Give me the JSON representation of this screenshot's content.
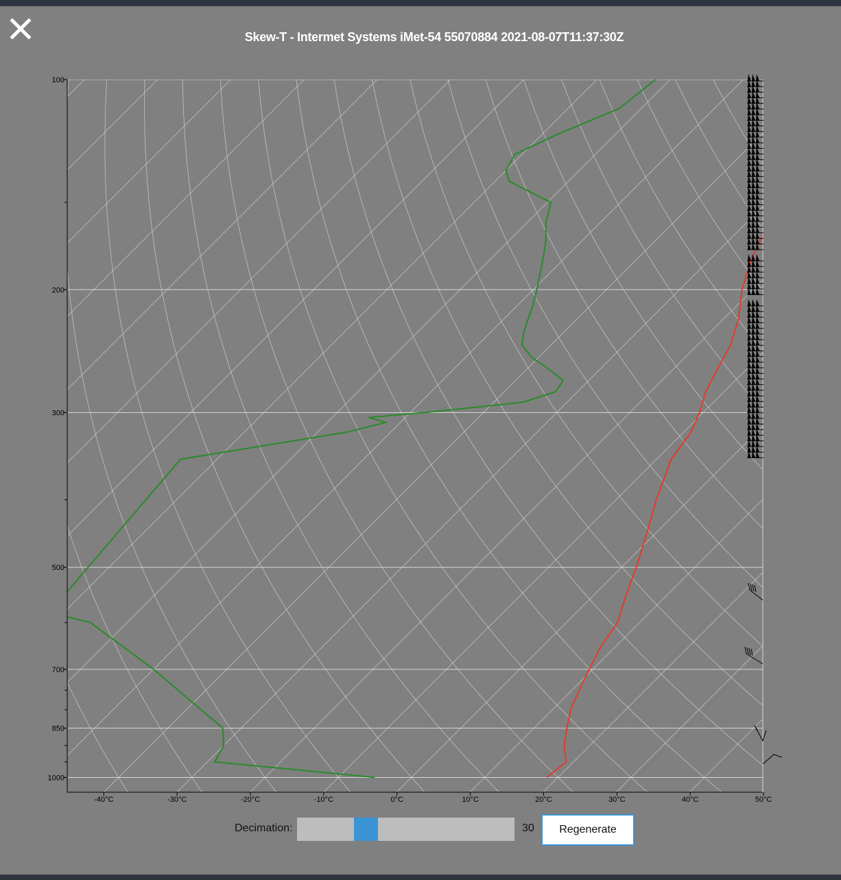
{
  "title": "Skew-T - Intermet Systems iMet-54 55070884 2021-08-07T11:37:30Z",
  "close_icon": "close-icon",
  "controls": {
    "decimation_label": "Decimation:",
    "decimation_value": "30",
    "slider_fraction": 0.295,
    "regenerate_label": "Regenerate",
    "accent": "#3a93d4"
  },
  "chart_data": {
    "type": "line",
    "title": "",
    "xlabel": "",
    "ylabel": "",
    "y_scale": "log",
    "y_ticks": [
      100,
      200,
      300,
      500,
      700,
      850,
      1000
    ],
    "y_minor_ticks": [
      150,
      400,
      600,
      750,
      800,
      900,
      950
    ],
    "x_ticks": [
      "-40°C",
      "-30°C",
      "-20°C",
      "-10°C",
      "0°C",
      "10°C",
      "20°C",
      "30°C",
      "40°C",
      "50°C"
    ],
    "xlim": [
      -45,
      50
    ],
    "ylim": [
      1050,
      100
    ],
    "grid": true,
    "colors": {
      "temperature": "#e03c2c",
      "dewpoint": "#2a8a2a",
      "grid": "#d8d8d8",
      "barbs": "#000000"
    },
    "series": [
      {
        "key": "temperature",
        "points": [
          [
            1000,
            18.5
          ],
          [
            950,
            19.0
          ],
          [
            900,
            16.5
          ],
          [
            850,
            14.5
          ],
          [
            800,
            12.5
          ],
          [
            750,
            11.0
          ],
          [
            700,
            9.5
          ],
          [
            650,
            8.0
          ],
          [
            600,
            7.0
          ],
          [
            550,
            4.5
          ],
          [
            500,
            2.0
          ],
          [
            450,
            -1.0
          ],
          [
            400,
            -4.5
          ],
          [
            350,
            -8.0
          ],
          [
            320,
            -9.0
          ],
          [
            300,
            -10.5
          ],
          [
            280,
            -12.5
          ],
          [
            260,
            -14.0
          ],
          [
            240,
            -15.5
          ],
          [
            220,
            -18.0
          ],
          [
            200,
            -21.5
          ],
          [
            180,
            -24.5
          ],
          [
            160,
            -27.0
          ],
          [
            150,
            -28.0
          ],
          [
            140,
            -26.5
          ],
          [
            130,
            -23.5
          ],
          [
            120,
            -22.0
          ],
          [
            110,
            -19.5
          ],
          [
            100,
            -15.0
          ]
        ]
      },
      {
        "key": "dewpoint",
        "points": [
          [
            1000,
            -5.0
          ],
          [
            950,
            -29.0
          ],
          [
            900,
            -30.0
          ],
          [
            850,
            -32.5
          ],
          [
            700,
            -50.0
          ],
          [
            600,
            -65.0
          ],
          [
            580,
            -72.0
          ],
          [
            350,
            -75.0
          ],
          [
            320,
            -56.0
          ],
          [
            310,
            -52.0
          ],
          [
            305,
            -55.0
          ],
          [
            300,
            -48.0
          ],
          [
            290,
            -36.0
          ],
          [
            280,
            -33.0
          ],
          [
            270,
            -33.5
          ],
          [
            260,
            -37.0
          ],
          [
            250,
            -41.0
          ],
          [
            240,
            -44.0
          ],
          [
            230,
            -45.5
          ],
          [
            210,
            -48.0
          ],
          [
            200,
            -49.5
          ],
          [
            180,
            -53.0
          ],
          [
            170,
            -55.0
          ],
          [
            160,
            -57.5
          ],
          [
            150,
            -59.5
          ],
          [
            140,
            -68.0
          ],
          [
            135,
            -70.0
          ],
          [
            128,
            -71.0
          ],
          [
            120,
            -68.0
          ],
          [
            110,
            -63.0
          ],
          [
            100,
            -62.0
          ]
        ]
      }
    ]
  }
}
